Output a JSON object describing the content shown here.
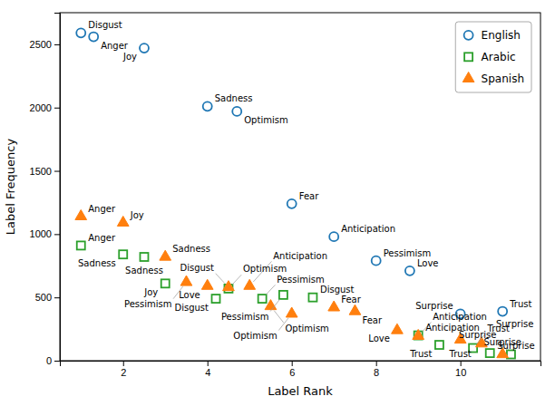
{
  "chart_data": {
    "type": "scatter",
    "xlabel": "Label Rank",
    "ylabel": "Label Frequency",
    "xlim": [
      0.5,
      11.9
    ],
    "ylim": [
      0,
      2750
    ],
    "xticks": [
      2,
      4,
      6,
      8,
      10
    ],
    "yticks": [
      0,
      500,
      1000,
      1500,
      2000,
      2500
    ],
    "legend": "upper-right",
    "series": [
      {
        "name": "English",
        "color": "#1f77b4",
        "marker": "circle-open",
        "x": [
          1.0,
          1.3,
          2.5,
          4.0,
          4.7,
          6.0,
          7.0,
          8.0,
          8.8,
          10.0,
          11.0
        ],
        "values": [
          2590,
          2560,
          2470,
          2010,
          1970,
          1240,
          980,
          790,
          710,
          370,
          390
        ],
        "annotations": [
          "Disgust",
          "Anger",
          "Joy",
          "Sadness",
          "Optimism",
          "Fear",
          "Anticipation",
          "Pessimism",
          "Love",
          "Surprise",
          "Trust"
        ]
      },
      {
        "name": "Arabic",
        "color": "#2ca02c",
        "marker": "square-open",
        "x": [
          1.0,
          2.0,
          2.5,
          3.0,
          4.5,
          4.2,
          5.3,
          5.8,
          6.5,
          9.0,
          9.5,
          10.3,
          10.7,
          11.2
        ],
        "values": [
          910,
          840,
          820,
          610,
          570,
          490,
          490,
          520,
          500,
          200,
          125,
          100,
          60,
          50
        ],
        "annotations": [
          "Anger",
          "Sadness",
          "Sadness",
          "Joy",
          "Optimism",
          "Disgust",
          "Pessimism",
          "Pessimism",
          "Disgust",
          "Anticipation",
          "Trust",
          "Trust",
          "Surprise",
          "Surprise"
        ]
      },
      {
        "name": "Spanish",
        "color": "#ff7f0e",
        "marker": "triangle",
        "x": [
          1.0,
          2.0,
          3.0,
          3.5,
          4.0,
          4.5,
          5.0,
          5.5,
          6.0,
          7.0,
          7.5,
          8.5,
          9.0,
          10.0,
          10.5,
          11.0
        ],
        "values": [
          1140,
          1090,
          820,
          620,
          590,
          580,
          590,
          430,
          370,
          420,
          390,
          240,
          195,
          165,
          135,
          50
        ],
        "annotations": [
          "Anger",
          "Joy",
          "Sadness",
          "Pessimism",
          "Love",
          "Disgust",
          "Anticipation",
          "Optimism",
          "Optimism",
          "Fear",
          "Fear",
          "Love",
          "Anticipation",
          "Trust",
          "Surprise",
          "Surprise"
        ]
      }
    ]
  }
}
